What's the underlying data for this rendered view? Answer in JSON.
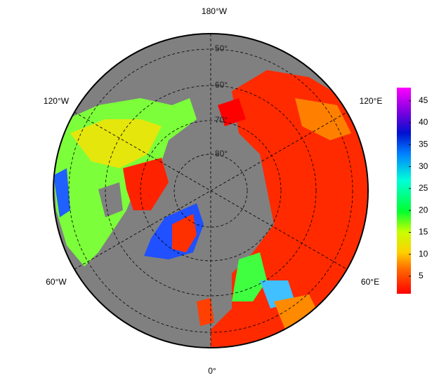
{
  "map": {
    "longitude_labels": [
      "180°W",
      "120°W",
      "120°E",
      "60°W",
      "60°E",
      "0°"
    ],
    "latitude_labels": [
      "50°",
      "60°",
      "70°",
      "80°"
    ]
  },
  "colorbar": {
    "range": [
      1,
      48
    ],
    "ticks": [
      5,
      10,
      15,
      20,
      25,
      30,
      35,
      40,
      45
    ]
  }
}
